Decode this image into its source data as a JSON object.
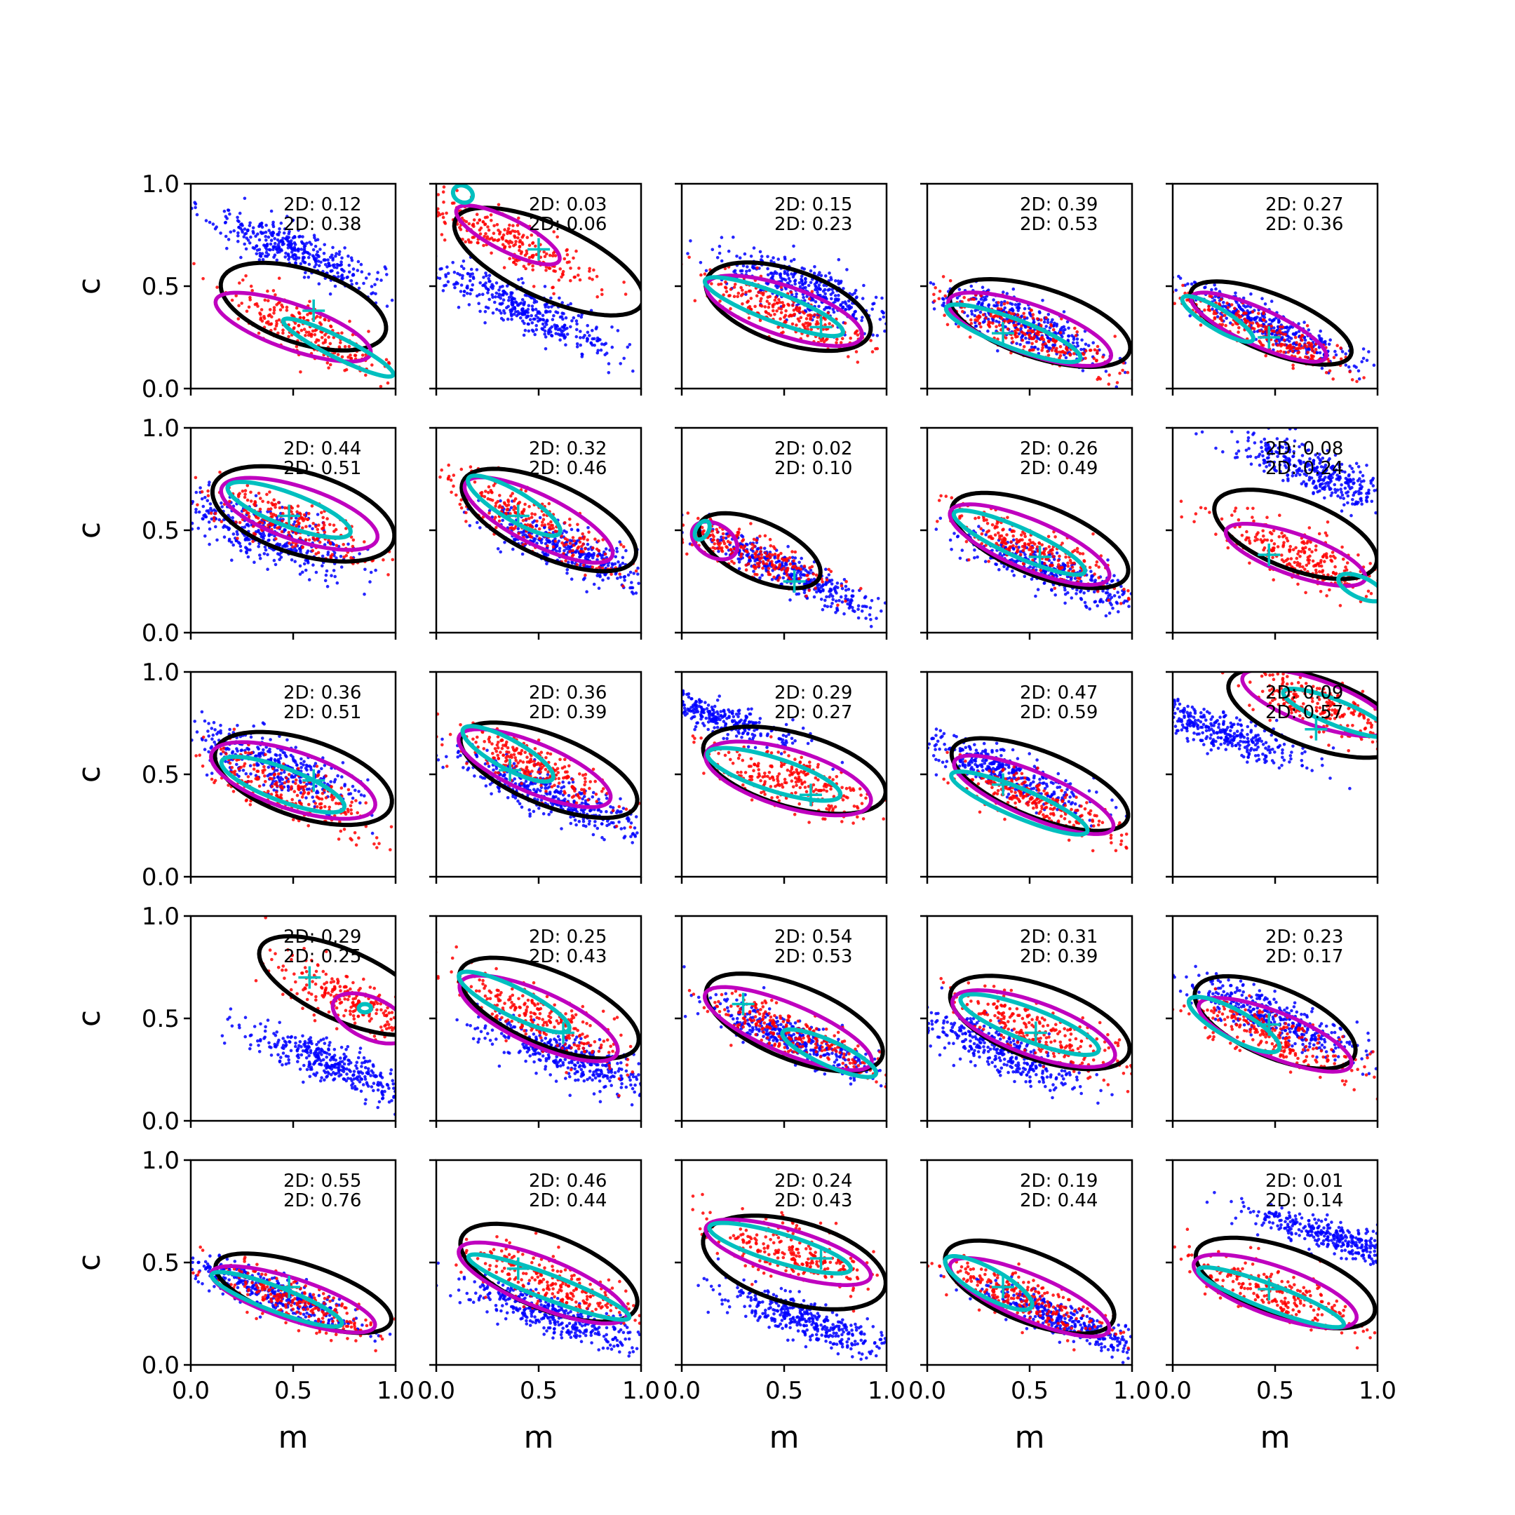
{
  "chart_data": {
    "type": "scatter",
    "layout": "5x5 grid of panels",
    "xlabel": "m",
    "ylabel": "c",
    "xlim": [
      0,
      1
    ],
    "ylim": [
      0,
      1
    ],
    "x_ticks": [
      "0.0",
      "0.5",
      "1.0"
    ],
    "y_ticks": [
      "0.0",
      "0.5",
      "1.0"
    ],
    "grid": false,
    "legend": "none",
    "colors": {
      "points_a": "#0000ff",
      "points_b": "#ff0000",
      "contour_outer": "#000000",
      "contour_mid": "#bf00bf",
      "contour_inner": "#00bfbf",
      "marker": "#00bfbf"
    },
    "panels": [
      {
        "stats": [
          "2D: 0.12",
          "2D: 0.38"
        ],
        "blue": [
          0.5,
          0.68,
          -0.4,
          0.1
        ],
        "red": [
          0.58,
          0.28,
          -0.4,
          0.12
        ],
        "outer": [
          0.55,
          0.4,
          0.42,
          0.18,
          -0.32
        ],
        "mid": [
          0.5,
          0.3,
          0.4,
          0.11,
          -0.35
        ],
        "inner": [
          0.72,
          0.2,
          0.3,
          0.05,
          -0.5
        ],
        "marker": [
          0.6,
          0.38
        ]
      },
      {
        "stats": [
          "2D: 0.03",
          "2D: 0.06"
        ],
        "blue": [
          0.45,
          0.38,
          -0.45,
          0.1
        ],
        "red": [
          0.35,
          0.72,
          -0.45,
          0.11
        ],
        "outer": [
          0.55,
          0.62,
          0.5,
          0.18,
          -0.45
        ],
        "mid": [
          0.35,
          0.75,
          0.28,
          0.08,
          -0.5
        ],
        "inner": [
          0.13,
          0.95,
          0.05,
          0.04,
          -0.5
        ],
        "marker": [
          0.5,
          0.68
        ]
      },
      {
        "stats": [
          "2D: 0.15",
          "2D: 0.23"
        ],
        "blue": [
          0.62,
          0.48,
          -0.35,
          0.11
        ],
        "red": [
          0.5,
          0.37,
          -0.38,
          0.12
        ],
        "outer": [
          0.52,
          0.4,
          0.42,
          0.18,
          -0.33
        ],
        "mid": [
          0.5,
          0.38,
          0.4,
          0.12,
          -0.34
        ],
        "inner": [
          0.45,
          0.4,
          0.36,
          0.07,
          -0.38
        ],
        "marker": [
          0.68,
          0.3
        ]
      },
      {
        "stats": [
          "2D: 0.39",
          "2D: 0.53"
        ],
        "blue": [
          0.45,
          0.32,
          -0.4,
          0.1
        ],
        "red": [
          0.5,
          0.27,
          -0.4,
          0.1
        ],
        "outer": [
          0.55,
          0.32,
          0.46,
          0.17,
          -0.32
        ],
        "mid": [
          0.5,
          0.29,
          0.42,
          0.12,
          -0.35
        ],
        "inner": [
          0.42,
          0.27,
          0.35,
          0.07,
          -0.38
        ],
        "marker": [
          0.37,
          0.27
        ]
      },
      {
        "stats": [
          "2D: 0.27",
          "2D: 0.36"
        ],
        "blue": [
          0.45,
          0.32,
          -0.45,
          0.08
        ],
        "red": [
          0.38,
          0.3,
          -0.45,
          0.08
        ],
        "outer": [
          0.48,
          0.32,
          0.42,
          0.14,
          -0.4
        ],
        "mid": [
          0.42,
          0.3,
          0.36,
          0.09,
          -0.45
        ],
        "inner": [
          0.22,
          0.34,
          0.2,
          0.05,
          -0.6
        ],
        "marker": [
          0.47,
          0.25
        ]
      },
      {
        "stats": [
          "2D: 0.44",
          "2D: 0.51"
        ],
        "blue": [
          0.38,
          0.48,
          -0.32,
          0.12
        ],
        "red": [
          0.5,
          0.53,
          -0.35,
          0.11
        ],
        "outer": [
          0.55,
          0.58,
          0.46,
          0.2,
          -0.3
        ],
        "mid": [
          0.53,
          0.58,
          0.4,
          0.13,
          -0.33
        ],
        "inner": [
          0.48,
          0.6,
          0.32,
          0.08,
          -0.38
        ],
        "marker": [
          0.48,
          0.57
        ]
      },
      {
        "stats": [
          "2D: 0.32",
          "2D: 0.46"
        ],
        "blue": [
          0.65,
          0.4,
          -0.38,
          0.09
        ],
        "red": [
          0.45,
          0.55,
          -0.45,
          0.11
        ],
        "outer": [
          0.55,
          0.55,
          0.46,
          0.18,
          -0.45
        ],
        "mid": [
          0.5,
          0.55,
          0.4,
          0.12,
          -0.5
        ],
        "inner": [
          0.38,
          0.62,
          0.26,
          0.07,
          -0.6
        ],
        "marker": [
          0.4,
          0.57
        ]
      },
      {
        "stats": [
          "2D: 0.02",
          "2D: 0.10"
        ],
        "blue": [
          0.55,
          0.28,
          -0.45,
          0.08
        ],
        "red": [
          0.3,
          0.4,
          -0.4,
          0.09
        ],
        "outer": [
          0.38,
          0.4,
          0.32,
          0.14,
          -0.45
        ],
        "mid": [
          0.16,
          0.45,
          0.12,
          0.08,
          -0.6
        ],
        "inner": [
          0.1,
          0.5,
          0.03,
          0.05,
          -0.6
        ],
        "marker": [
          0.55,
          0.25
        ]
      },
      {
        "stats": [
          "2D: 0.26",
          "2D: 0.49"
        ],
        "blue": [
          0.6,
          0.3,
          -0.35,
          0.09
        ],
        "red": [
          0.48,
          0.42,
          -0.4,
          0.1
        ],
        "outer": [
          0.55,
          0.45,
          0.46,
          0.17,
          -0.4
        ],
        "mid": [
          0.5,
          0.43,
          0.42,
          0.12,
          -0.42
        ],
        "inner": [
          0.45,
          0.44,
          0.35,
          0.07,
          -0.45
        ],
        "marker": [
          0.55,
          0.37
        ]
      },
      {
        "stats": [
          "2D: 0.08",
          "2D: 0.24"
        ],
        "blue": [
          0.7,
          0.78,
          -0.4,
          0.1
        ],
        "red": [
          0.6,
          0.38,
          -0.35,
          0.12
        ],
        "outer": [
          0.6,
          0.48,
          0.42,
          0.17,
          -0.38
        ],
        "mid": [
          0.6,
          0.38,
          0.36,
          0.1,
          -0.35
        ],
        "inner": [
          0.92,
          0.22,
          0.12,
          0.05,
          -0.45
        ],
        "marker": [
          0.47,
          0.38
        ]
      },
      {
        "stats": [
          "2D: 0.36",
          "2D: 0.51"
        ],
        "blue": [
          0.4,
          0.55,
          -0.35,
          0.11
        ],
        "red": [
          0.48,
          0.42,
          -0.38,
          0.12
        ],
        "outer": [
          0.55,
          0.48,
          0.45,
          0.19,
          -0.32
        ],
        "mid": [
          0.5,
          0.47,
          0.42,
          0.14,
          -0.33
        ],
        "inner": [
          0.45,
          0.45,
          0.32,
          0.08,
          -0.38
        ],
        "marker": [
          0.6,
          0.47
        ]
      },
      {
        "stats": [
          "2D: 0.36",
          "2D: 0.39"
        ],
        "blue": [
          0.55,
          0.4,
          -0.38,
          0.09
        ],
        "red": [
          0.45,
          0.55,
          -0.42,
          0.1
        ],
        "outer": [
          0.55,
          0.52,
          0.46,
          0.17,
          -0.4
        ],
        "mid": [
          0.48,
          0.53,
          0.4,
          0.12,
          -0.42
        ],
        "inner": [
          0.35,
          0.6,
          0.25,
          0.07,
          -0.55
        ],
        "marker": [
          0.36,
          0.52
        ]
      },
      {
        "stats": [
          "2D: 0.29",
          "2D: 0.27"
        ],
        "blue": [
          0.1,
          0.8,
          -0.3,
          0.07
        ],
        "red": [
          0.52,
          0.48,
          -0.3,
          0.12
        ],
        "outer": [
          0.55,
          0.52,
          0.46,
          0.18,
          -0.28
        ],
        "mid": [
          0.52,
          0.48,
          0.42,
          0.14,
          -0.3
        ],
        "inner": [
          0.45,
          0.5,
          0.34,
          0.08,
          -0.32
        ],
        "marker": [
          0.63,
          0.4
        ]
      },
      {
        "stats": [
          "2D: 0.47",
          "2D: 0.59"
        ],
        "blue": [
          0.35,
          0.52,
          -0.4,
          0.09
        ],
        "red": [
          0.5,
          0.38,
          -0.4,
          0.1
        ],
        "outer": [
          0.55,
          0.45,
          0.46,
          0.16,
          -0.4
        ],
        "mid": [
          0.52,
          0.4,
          0.42,
          0.11,
          -0.42
        ],
        "inner": [
          0.45,
          0.36,
          0.36,
          0.07,
          -0.42
        ],
        "marker": [
          0.37,
          0.45
        ]
      },
      {
        "stats": [
          "2D: 0.09",
          "2D: 0.57"
        ],
        "blue": [
          0.2,
          0.72,
          -0.35,
          0.09
        ],
        "red": [
          0.7,
          0.85,
          -0.35,
          0.12
        ],
        "outer": [
          0.7,
          0.8,
          0.45,
          0.17,
          -0.35
        ],
        "mid": [
          0.7,
          0.85,
          0.38,
          0.11,
          -0.35
        ],
        "inner": [
          0.8,
          0.8,
          0.28,
          0.06,
          -0.4
        ],
        "marker": [
          0.7,
          0.72
        ]
      },
      {
        "stats": [
          "2D: 0.29",
          "2D: 0.25"
        ],
        "blue": [
          0.7,
          0.27,
          -0.38,
          0.09
        ],
        "red": [
          0.82,
          0.58,
          -0.4,
          0.12
        ],
        "outer": [
          0.75,
          0.66,
          0.45,
          0.17,
          -0.45
        ],
        "mid": [
          0.88,
          0.5,
          0.2,
          0.1,
          -0.45
        ],
        "inner": [
          0.85,
          0.55,
          0.03,
          0.02,
          0.0
        ],
        "marker": [
          0.58,
          0.7
        ]
      },
      {
        "stats": [
          "2D: 0.25",
          "2D: 0.43"
        ],
        "blue": [
          0.65,
          0.3,
          -0.35,
          0.1
        ],
        "red": [
          0.5,
          0.5,
          -0.42,
          0.12
        ],
        "outer": [
          0.55,
          0.55,
          0.47,
          0.18,
          -0.42
        ],
        "mid": [
          0.5,
          0.5,
          0.42,
          0.13,
          -0.45
        ],
        "inner": [
          0.38,
          0.58,
          0.3,
          0.07,
          -0.5
        ],
        "marker": [
          0.62,
          0.43
        ]
      },
      {
        "stats": [
          "2D: 0.54",
          "2D: 0.53"
        ],
        "blue": [
          0.55,
          0.4,
          -0.38,
          0.09
        ],
        "red": [
          0.55,
          0.42,
          -0.4,
          0.1
        ],
        "outer": [
          0.55,
          0.48,
          0.46,
          0.18,
          -0.4
        ],
        "mid": [
          0.52,
          0.45,
          0.44,
          0.12,
          -0.42
        ],
        "inner": [
          0.72,
          0.33,
          0.25,
          0.06,
          -0.45
        ],
        "marker": [
          0.3,
          0.57
        ]
      },
      {
        "stats": [
          "2D: 0.31",
          "2D: 0.39"
        ],
        "blue": [
          0.35,
          0.35,
          -0.4,
          0.1
        ],
        "red": [
          0.52,
          0.45,
          -0.38,
          0.12
        ],
        "outer": [
          0.55,
          0.48,
          0.46,
          0.18,
          -0.35
        ],
        "mid": [
          0.52,
          0.45,
          0.42,
          0.13,
          -0.36
        ],
        "inner": [
          0.5,
          0.47,
          0.36,
          0.08,
          -0.38
        ],
        "marker": [
          0.53,
          0.43
        ]
      },
      {
        "stats": [
          "2D: 0.23",
          "2D: 0.17"
        ],
        "blue": [
          0.5,
          0.5,
          -0.4,
          0.09
        ],
        "red": [
          0.45,
          0.42,
          -0.38,
          0.11
        ],
        "outer": [
          0.5,
          0.48,
          0.42,
          0.17,
          -0.42
        ],
        "mid": [
          0.5,
          0.42,
          0.4,
          0.11,
          -0.4
        ],
        "inner": [
          0.3,
          0.47,
          0.25,
          0.07,
          -0.55
        ],
        "marker": [
          0.47,
          0.47
        ]
      },
      {
        "stats": [
          "2D: 0.55",
          "2D: 0.76"
        ],
        "blue": [
          0.4,
          0.35,
          -0.35,
          0.08
        ],
        "red": [
          0.48,
          0.32,
          -0.38,
          0.1
        ],
        "outer": [
          0.55,
          0.35,
          0.45,
          0.14,
          -0.33
        ],
        "mid": [
          0.5,
          0.32,
          0.42,
          0.1,
          -0.33
        ],
        "inner": [
          0.42,
          0.32,
          0.34,
          0.06,
          -0.38
        ],
        "marker": [
          0.48,
          0.38
        ]
      },
      {
        "stats": [
          "2D: 0.46",
          "2D: 0.44"
        ],
        "blue": [
          0.55,
          0.25,
          -0.35,
          0.09
        ],
        "red": [
          0.55,
          0.4,
          -0.38,
          0.11
        ],
        "outer": [
          0.55,
          0.45,
          0.46,
          0.18,
          -0.4
        ],
        "mid": [
          0.52,
          0.4,
          0.44,
          0.12,
          -0.4
        ],
        "inner": [
          0.55,
          0.38,
          0.42,
          0.06,
          -0.38
        ],
        "marker": [
          0.4,
          0.47
        ]
      },
      {
        "stats": [
          "2D: 0.24",
          "2D: 0.43"
        ],
        "blue": [
          0.6,
          0.22,
          -0.35,
          0.09
        ],
        "red": [
          0.52,
          0.55,
          -0.3,
          0.12
        ],
        "outer": [
          0.55,
          0.5,
          0.46,
          0.2,
          -0.28
        ],
        "mid": [
          0.52,
          0.55,
          0.42,
          0.11,
          -0.3
        ],
        "inner": [
          0.48,
          0.57,
          0.36,
          0.07,
          -0.3
        ],
        "marker": [
          0.68,
          0.52
        ]
      },
      {
        "stats": [
          "2D: 0.19",
          "2D: 0.44"
        ],
        "blue": [
          0.7,
          0.2,
          -0.38,
          0.08
        ],
        "red": [
          0.45,
          0.33,
          -0.4,
          0.1
        ],
        "outer": [
          0.5,
          0.38,
          0.44,
          0.17,
          -0.4
        ],
        "mid": [
          0.5,
          0.33,
          0.42,
          0.11,
          -0.42
        ],
        "inner": [
          0.3,
          0.4,
          0.24,
          0.07,
          -0.55
        ],
        "marker": [
          0.37,
          0.38
        ]
      },
      {
        "stats": [
          "2D: 0.01",
          "2D: 0.14"
        ],
        "blue": [
          0.8,
          0.62,
          -0.3,
          0.07
        ],
        "red": [
          0.5,
          0.35,
          -0.35,
          0.11
        ],
        "outer": [
          0.55,
          0.4,
          0.46,
          0.17,
          -0.35
        ],
        "mid": [
          0.5,
          0.36,
          0.42,
          0.12,
          -0.35
        ],
        "inner": [
          0.48,
          0.33,
          0.38,
          0.06,
          -0.38
        ],
        "marker": [
          0.47,
          0.37
        ]
      }
    ]
  }
}
